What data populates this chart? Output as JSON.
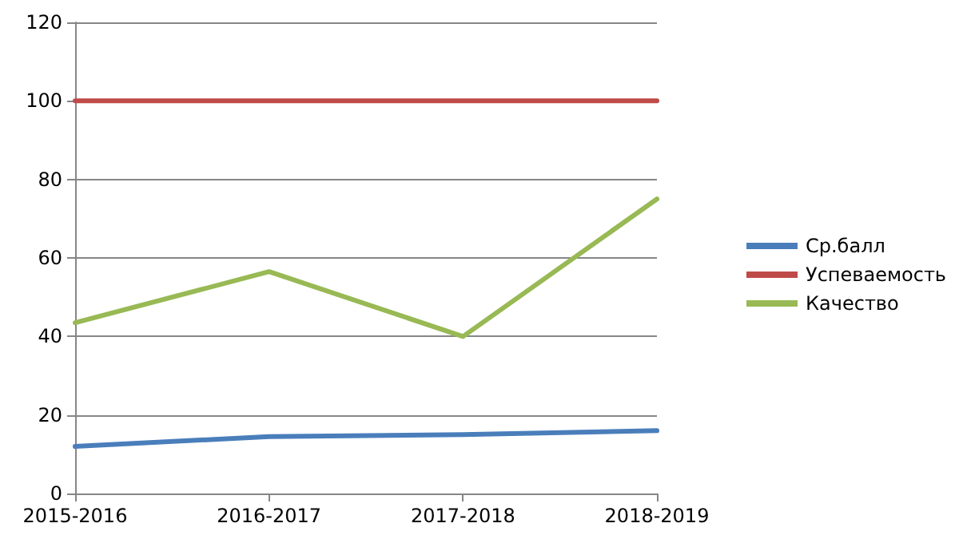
{
  "chart_data": {
    "type": "line",
    "categories": [
      "2015-2016",
      "2016-2017",
      "2017-2018",
      "2018-2019"
    ],
    "series": [
      {
        "name": "Ср.балл",
        "color": "#4a7ebb",
        "values": [
          12,
          14.5,
          15,
          16
        ]
      },
      {
        "name": "Успеваемость",
        "color": "#be4b48",
        "values": [
          100,
          100,
          100,
          100
        ]
      },
      {
        "name": "Качество",
        "color": "#98b954",
        "values": [
          43.5,
          56.5,
          40,
          75
        ]
      }
    ],
    "ylim": [
      0,
      120
    ],
    "yticks": [
      0,
      20,
      40,
      60,
      80,
      100,
      120
    ],
    "grid": "y",
    "legend": "right",
    "marker": "none",
    "line_style": "solid"
  }
}
